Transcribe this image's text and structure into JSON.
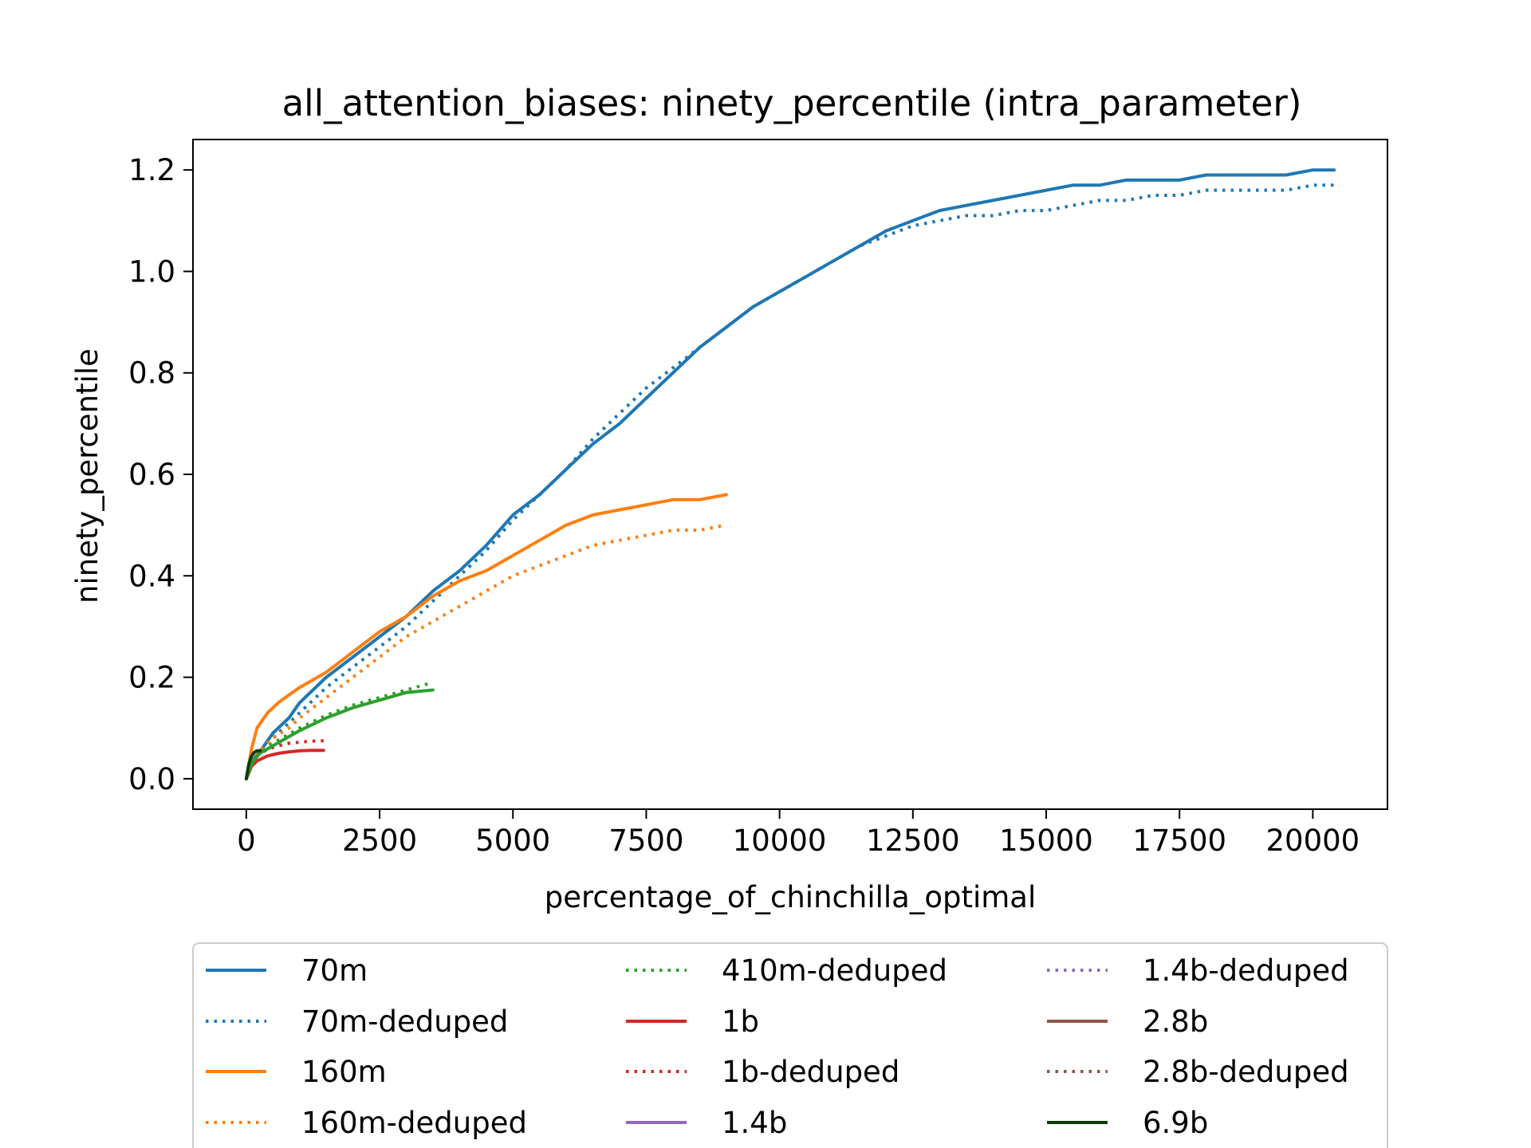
{
  "chart_data": {
    "type": "line",
    "title": "all_attention_biases: ninety_percentile (intra_parameter)",
    "xlabel": "percentage_of_chinchilla_optimal",
    "ylabel": "ninety_percentile",
    "xlim": [
      -1000,
      21400
    ],
    "ylim": [
      -0.06,
      1.26
    ],
    "xticks": [
      0,
      2500,
      5000,
      7500,
      10000,
      12500,
      15000,
      17500,
      20000
    ],
    "yticks": [
      0.0,
      0.2,
      0.4,
      0.6,
      0.8,
      1.0,
      1.2
    ],
    "xtick_labels": [
      "0",
      "2500",
      "5000",
      "7500",
      "10000",
      "12500",
      "15000",
      "17500",
      "20000"
    ],
    "ytick_labels": [
      "0.0",
      "0.2",
      "0.4",
      "0.6",
      "0.8",
      "1.0",
      "1.2"
    ],
    "grid": false,
    "legend_position": "below-plot, 3 columns",
    "series": [
      {
        "name": "70m",
        "color": "#1f77b4",
        "dash": "solid",
        "x": [
          0,
          150,
          300,
          500,
          800,
          1000,
          1500,
          2000,
          2500,
          3000,
          3500,
          4000,
          4500,
          5000,
          5500,
          6000,
          6500,
          7000,
          7500,
          8000,
          8500,
          9000,
          9500,
          10000,
          10500,
          11000,
          11500,
          12000,
          12500,
          13000,
          13500,
          14000,
          14500,
          15000,
          15500,
          16000,
          16500,
          17000,
          17500,
          18000,
          18500,
          19000,
          19500,
          20000,
          20400
        ],
        "y": [
          0.0,
          0.04,
          0.06,
          0.09,
          0.12,
          0.15,
          0.2,
          0.24,
          0.28,
          0.32,
          0.37,
          0.41,
          0.46,
          0.52,
          0.56,
          0.61,
          0.66,
          0.7,
          0.75,
          0.8,
          0.85,
          0.89,
          0.93,
          0.96,
          0.99,
          1.02,
          1.05,
          1.08,
          1.1,
          1.12,
          1.13,
          1.14,
          1.15,
          1.16,
          1.17,
          1.17,
          1.18,
          1.18,
          1.18,
          1.19,
          1.19,
          1.19,
          1.19,
          1.2,
          1.2
        ]
      },
      {
        "name": "70m-deduped",
        "color": "#1f77b4",
        "dash": "dotted",
        "x": [
          0,
          150,
          300,
          500,
          800,
          1000,
          1500,
          2000,
          2500,
          3000,
          3500,
          4000,
          4500,
          5000,
          5500,
          6000,
          6500,
          7000,
          7500,
          8000,
          8500,
          9000,
          9500,
          10000,
          10500,
          11000,
          11500,
          12000,
          12500,
          13000,
          13500,
          14000,
          14500,
          15000,
          15500,
          16000,
          16500,
          17000,
          17500,
          18000,
          18500,
          19000,
          19500,
          20000,
          20400
        ],
        "y": [
          0.0,
          0.04,
          0.055,
          0.08,
          0.11,
          0.13,
          0.18,
          0.22,
          0.26,
          0.3,
          0.35,
          0.4,
          0.45,
          0.51,
          0.56,
          0.61,
          0.67,
          0.72,
          0.77,
          0.81,
          0.85,
          0.89,
          0.93,
          0.96,
          0.99,
          1.02,
          1.05,
          1.07,
          1.09,
          1.1,
          1.11,
          1.11,
          1.12,
          1.12,
          1.13,
          1.14,
          1.14,
          1.15,
          1.15,
          1.16,
          1.16,
          1.16,
          1.16,
          1.17,
          1.17
        ]
      },
      {
        "name": "160m",
        "color": "#ff7f0e",
        "dash": "solid",
        "x": [
          0,
          100,
          200,
          400,
          600,
          800,
          1000,
          1500,
          2000,
          2500,
          3000,
          3500,
          4000,
          4500,
          5000,
          5500,
          6000,
          6500,
          7000,
          7500,
          8000,
          8500,
          9000
        ],
        "y": [
          0.0,
          0.06,
          0.1,
          0.13,
          0.15,
          0.165,
          0.18,
          0.21,
          0.25,
          0.29,
          0.32,
          0.36,
          0.39,
          0.41,
          0.44,
          0.47,
          0.5,
          0.52,
          0.53,
          0.54,
          0.55,
          0.55,
          0.56
        ]
      },
      {
        "name": "160m-deduped",
        "color": "#ff7f0e",
        "dash": "dotted",
        "x": [
          0,
          150,
          300,
          500,
          800,
          1000,
          1500,
          2000,
          2500,
          3000,
          3500,
          4000,
          4500,
          5000,
          5500,
          6000,
          6500,
          7000,
          7500,
          8000,
          8500,
          9000
        ],
        "y": [
          0.0,
          0.04,
          0.06,
          0.08,
          0.1,
          0.12,
          0.16,
          0.2,
          0.24,
          0.28,
          0.31,
          0.34,
          0.37,
          0.4,
          0.42,
          0.44,
          0.46,
          0.47,
          0.48,
          0.49,
          0.49,
          0.5
        ]
      },
      {
        "name": "410m-deduped",
        "color": "#2ca02c",
        "dash": "dotted",
        "x": [
          0,
          100,
          250,
          500,
          750,
          1000,
          1500,
          2000,
          2500,
          3000,
          3500
        ],
        "y": [
          0.0,
          0.03,
          0.05,
          0.07,
          0.085,
          0.1,
          0.125,
          0.145,
          0.16,
          0.175,
          0.19
        ]
      },
      {
        "name": "1b",
        "color": "#d62728",
        "dash": "solid",
        "x": [
          0,
          100,
          200,
          400,
          600,
          800,
          1000,
          1200,
          1450
        ],
        "y": [
          0.0,
          0.025,
          0.035,
          0.045,
          0.05,
          0.053,
          0.055,
          0.056,
          0.056
        ]
      },
      {
        "name": "1b-deduped",
        "color": "#d62728",
        "dash": "dotted",
        "x": [
          0,
          100,
          200,
          400,
          600,
          800,
          1000,
          1200,
          1450
        ],
        "y": [
          0.0,
          0.03,
          0.045,
          0.058,
          0.065,
          0.07,
          0.072,
          0.074,
          0.075
        ]
      },
      {
        "name": "1.4b",
        "color": "#9467bd",
        "dash": "solid",
        "x": [],
        "y": []
      },
      {
        "name": "1.4b-deduped",
        "color": "#9467bd",
        "dash": "dotted",
        "x": [],
        "y": []
      },
      {
        "name": "2.8b",
        "color": "#8c564b",
        "dash": "solid",
        "x": [],
        "y": []
      },
      {
        "name": "2.8b-deduped",
        "color": "#8c564b",
        "dash": "dotted",
        "x": [],
        "y": []
      },
      {
        "name": "410m",
        "color": "#2ca02c",
        "dash": "solid",
        "in_legend": false,
        "x": [
          0,
          100,
          250,
          500,
          750,
          1000,
          1500,
          2000,
          2500,
          3000,
          3500
        ],
        "y": [
          0.0,
          0.03,
          0.05,
          0.065,
          0.08,
          0.095,
          0.12,
          0.14,
          0.155,
          0.17,
          0.175
        ]
      },
      {
        "name": "6.9b",
        "color": "#0b3d0b",
        "dash": "solid",
        "x": [
          0,
          50,
          100,
          150,
          200,
          260
        ],
        "y": [
          0.0,
          0.03,
          0.045,
          0.052,
          0.055,
          0.055
        ]
      }
    ],
    "legend": [
      {
        "label": "70m",
        "color": "#1f77b4",
        "dash": "solid"
      },
      {
        "label": "70m-deduped",
        "color": "#1f77b4",
        "dash": "dotted"
      },
      {
        "label": "160m",
        "color": "#ff7f0e",
        "dash": "solid"
      },
      {
        "label": "160m-deduped",
        "color": "#ff7f0e",
        "dash": "dotted"
      },
      {
        "label": "410m-deduped",
        "color": "#2ca02c",
        "dash": "dotted"
      },
      {
        "label": "1b",
        "color": "#d62728",
        "dash": "solid"
      },
      {
        "label": "1b-deduped",
        "color": "#d62728",
        "dash": "dotted"
      },
      {
        "label": "1.4b",
        "color": "#9467bd",
        "dash": "solid"
      },
      {
        "label": "1.4b-deduped",
        "color": "#9467bd",
        "dash": "dotted"
      },
      {
        "label": "2.8b",
        "color": "#8c564b",
        "dash": "solid"
      },
      {
        "label": "2.8b-deduped",
        "color": "#8c564b",
        "dash": "dotted"
      },
      {
        "label": "6.9b",
        "color": "#0b3d0b",
        "dash": "solid"
      }
    ]
  }
}
